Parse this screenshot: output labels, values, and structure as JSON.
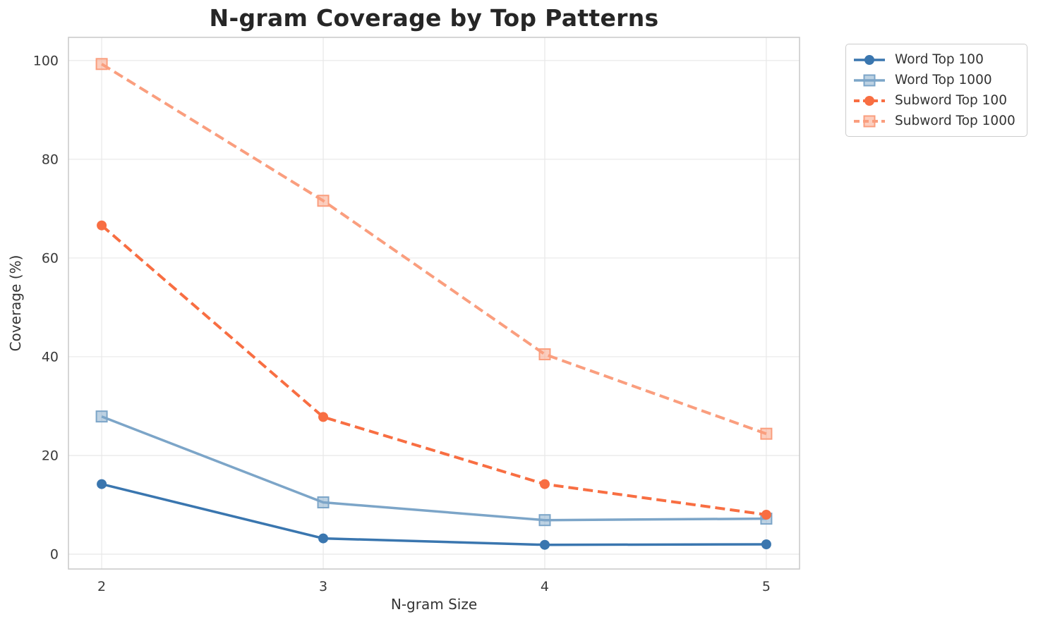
{
  "chart_data": {
    "type": "line",
    "title": "N-gram Coverage by Top Patterns",
    "xlabel": "N-gram Size",
    "ylabel": "Coverage (%)",
    "x": [
      2,
      3,
      4,
      5
    ],
    "xticks": [
      "2",
      "3",
      "4",
      "5"
    ],
    "yticks": [
      0,
      20,
      40,
      60,
      80,
      100
    ],
    "xlim": [
      1.85,
      5.15
    ],
    "ylim": [
      -3,
      104.7
    ],
    "grid": true,
    "legend_position": "outside-top-right",
    "colors": {
      "grid": "#e8e8e8",
      "spine": "#c8c8c8",
      "tick_text": "#3a3a3a",
      "title_text": "#262626"
    },
    "series": [
      {
        "name": "Word Top 100",
        "values": [
          14.2,
          3.2,
          1.9,
          2.0
        ],
        "color": "#3a76af",
        "marker": "circle",
        "dash": "solid"
      },
      {
        "name": "Word Top 1000",
        "values": [
          27.9,
          10.5,
          6.9,
          7.2
        ],
        "color": "#7ca5c8",
        "marker": "square",
        "dash": "solid"
      },
      {
        "name": "Subword Top 100",
        "values": [
          66.6,
          27.8,
          14.2,
          8.0
        ],
        "color": "#f86e42",
        "marker": "circle",
        "dash": "dashed"
      },
      {
        "name": "Subword Top 1000",
        "values": [
          99.3,
          71.6,
          40.5,
          24.4
        ],
        "color": "#fa9e7e",
        "marker": "square",
        "dash": "dashed"
      }
    ]
  }
}
